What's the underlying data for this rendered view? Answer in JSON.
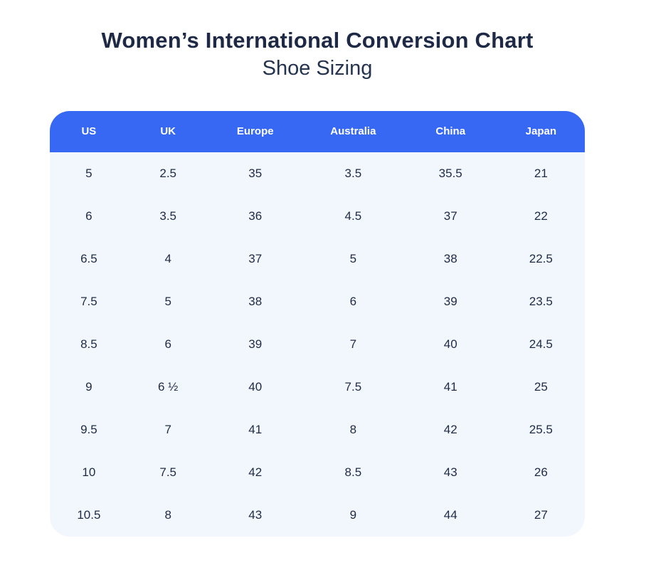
{
  "chart_data": {
    "type": "table",
    "title": "Women’s International Conversion Chart",
    "subtitle": "Shoe Sizing",
    "columns": [
      "US",
      "UK",
      "Europe",
      "Australia",
      "China",
      "Japan"
    ],
    "rows": [
      [
        "5",
        "2.5",
        "35",
        "3.5",
        "35.5",
        "21"
      ],
      [
        "6",
        "3.5",
        "36",
        "4.5",
        "37",
        "22"
      ],
      [
        "6.5",
        "4",
        "37",
        "5",
        "38",
        "22.5"
      ],
      [
        "7.5",
        "5",
        "38",
        "6",
        "39",
        "23.5"
      ],
      [
        "8.5",
        "6",
        "39",
        "7",
        "40",
        "24.5"
      ],
      [
        "9",
        "6 ½",
        "40",
        "7.5",
        "41",
        "25"
      ],
      [
        "9.5",
        "7",
        "41",
        "8",
        "42",
        "25.5"
      ],
      [
        "10",
        "7.5",
        "42",
        "8.5",
        "43",
        "26"
      ],
      [
        "10.5",
        "8",
        "43",
        "9",
        "44",
        "27"
      ]
    ]
  },
  "colors": {
    "header_bg": "#3768f3",
    "header_text": "#ffffff",
    "body_bg": "#f2f6fd",
    "body_text": "#1f2b45",
    "title_text": "#1e2a45",
    "page_bg": "#ffffff"
  }
}
